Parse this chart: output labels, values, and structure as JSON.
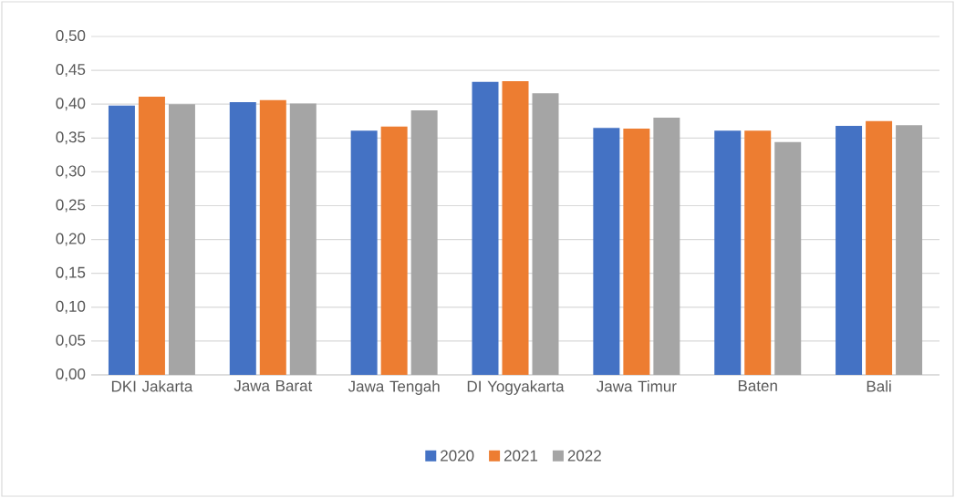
{
  "chart_data": {
    "type": "bar",
    "categories": [
      "DKI Jakarta",
      "Jawa Barat",
      "Jawa Tengah",
      "DI Yogyakarta",
      "Jawa Timur",
      "Baten",
      "Bali"
    ],
    "series": [
      {
        "name": "2020",
        "color": "#4472c4",
        "values": [
          0.398,
          0.403,
          0.361,
          0.433,
          0.365,
          0.361,
          0.368
        ]
      },
      {
        "name": "2021",
        "color": "#ed7d31",
        "values": [
          0.411,
          0.406,
          0.367,
          0.434,
          0.364,
          0.361,
          0.375
        ]
      },
      {
        "name": "2022",
        "color": "#a5a5a5",
        "values": [
          0.4,
          0.401,
          0.391,
          0.416,
          0.38,
          0.344,
          0.369
        ]
      }
    ],
    "ylim": [
      0,
      0.5
    ],
    "yticks": [
      {
        "value": 0,
        "label": "0,00"
      },
      {
        "value": 0.05,
        "label": "0,05"
      },
      {
        "value": 0.1,
        "label": "0,10"
      },
      {
        "value": 0.15,
        "label": "0,15"
      },
      {
        "value": 0.2,
        "label": "0,20"
      },
      {
        "value": 0.25,
        "label": "0,25"
      },
      {
        "value": 0.3,
        "label": "0,30"
      },
      {
        "value": 0.35,
        "label": "0,35"
      },
      {
        "value": 0.4,
        "label": "0,40"
      },
      {
        "value": 0.45,
        "label": "0,45"
      },
      {
        "value": 0.5,
        "label": "0,50"
      }
    ],
    "grid": "y",
    "legend": "bottom"
  }
}
